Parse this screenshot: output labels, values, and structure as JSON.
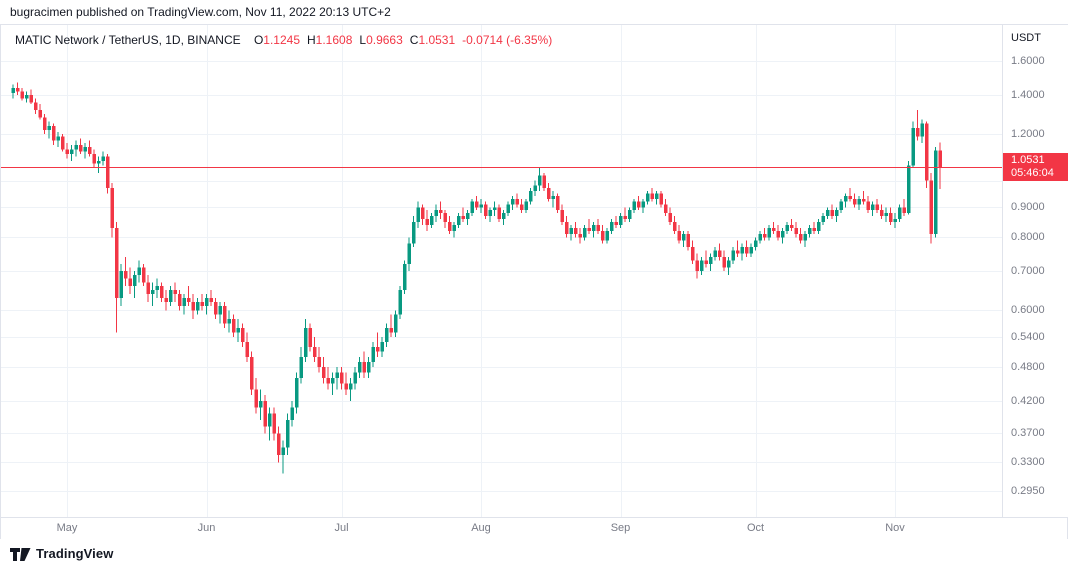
{
  "attribution": {
    "text": "bugracimen published on TradingView.com, Nov 11, 2022 20:13 UTC+2"
  },
  "legend": {
    "title": "MATIC Network / TetherUS, 1D, BINANCE",
    "items": [
      {
        "k": "O",
        "v": "1.1245"
      },
      {
        "k": "H",
        "v": "1.1608"
      },
      {
        "k": "L",
        "v": "0.9663"
      },
      {
        "k": "C",
        "v": "1.0531"
      }
    ],
    "change": "-0.0714 (-6.35%)"
  },
  "price_axis": {
    "currency": "USDT",
    "badge": {
      "price": "1.0531",
      "countdown": "05:46:04"
    }
  },
  "footer": {
    "logo_text": "TradingView"
  },
  "colors": {
    "up": "#089981",
    "down": "#f23645",
    "accent": "#f23645",
    "grid": "#eef2f7",
    "axis_text": "#787b86",
    "header_text": "#131722",
    "border": "#e0e3eb"
  },
  "chart_data": {
    "type": "candlestick",
    "symbol": "MATIC/USDT",
    "interval": "1D",
    "exchange": "BINANCE",
    "scale": "log",
    "last": {
      "open": 1.1245,
      "high": 1.1608,
      "low": 0.9663,
      "close": 1.0531,
      "change": -0.0714,
      "change_pct": -6.35
    },
    "y_ticks": [
      {
        "label": "1.6000",
        "value": 1.6
      },
      {
        "label": "1.4000",
        "value": 1.4
      },
      {
        "label": "1.2000",
        "value": 1.2
      },
      {
        "label": "0.9000",
        "value": 0.9
      },
      {
        "label": "0.8000",
        "value": 0.8
      },
      {
        "label": "0.7000",
        "value": 0.7
      },
      {
        "label": "0.6000",
        "value": 0.6
      },
      {
        "label": "0.5400",
        "value": 0.54
      },
      {
        "label": "0.4800",
        "value": 0.48
      },
      {
        "label": "0.4200",
        "value": 0.42
      },
      {
        "label": "0.3700",
        "value": 0.37
      },
      {
        "label": "0.3300",
        "value": 0.33
      },
      {
        "label": "0.2950",
        "value": 0.295
      }
    ],
    "grid_prices": [
      1.6,
      1.4,
      1.2,
      1.0,
      0.9,
      0.8,
      0.7,
      0.6,
      0.54,
      0.48,
      0.42,
      0.37,
      0.33,
      0.295
    ],
    "months": [
      {
        "label": "May",
        "index": 12
      },
      {
        "label": "Jun",
        "index": 43
      },
      {
        "label": "Jul",
        "index": 73
      },
      {
        "label": "Aug",
        "index": 104
      },
      {
        "label": "Sep",
        "index": 135
      },
      {
        "label": "Oct",
        "index": 165
      },
      {
        "label": "Nov",
        "index": 196
      }
    ],
    "candles": [
      [
        1.41,
        1.46,
        1.38,
        1.44
      ],
      [
        1.44,
        1.47,
        1.4,
        1.42
      ],
      [
        1.42,
        1.44,
        1.37,
        1.38
      ],
      [
        1.38,
        1.42,
        1.36,
        1.4
      ],
      [
        1.4,
        1.43,
        1.35,
        1.36
      ],
      [
        1.36,
        1.38,
        1.3,
        1.32
      ],
      [
        1.32,
        1.35,
        1.27,
        1.28
      ],
      [
        1.28,
        1.3,
        1.2,
        1.22
      ],
      [
        1.22,
        1.26,
        1.18,
        1.24
      ],
      [
        1.24,
        1.25,
        1.15,
        1.17
      ],
      [
        1.17,
        1.21,
        1.14,
        1.19
      ],
      [
        1.19,
        1.2,
        1.12,
        1.13
      ],
      [
        1.13,
        1.16,
        1.09,
        1.11
      ],
      [
        1.11,
        1.15,
        1.08,
        1.13
      ],
      [
        1.13,
        1.17,
        1.1,
        1.15
      ],
      [
        1.15,
        1.18,
        1.11,
        1.12
      ],
      [
        1.12,
        1.16,
        1.09,
        1.14
      ],
      [
        1.14,
        1.17,
        1.1,
        1.11
      ],
      [
        1.11,
        1.13,
        1.05,
        1.07
      ],
      [
        1.07,
        1.1,
        1.03,
        1.08
      ],
      [
        1.08,
        1.12,
        1.06,
        1.1
      ],
      [
        1.1,
        1.11,
        0.95,
        0.97
      ],
      [
        0.97,
        0.99,
        0.8,
        0.83
      ],
      [
        0.83,
        0.85,
        0.55,
        0.63
      ],
      [
        0.63,
        0.72,
        0.61,
        0.7
      ],
      [
        0.7,
        0.74,
        0.66,
        0.68
      ],
      [
        0.68,
        0.71,
        0.64,
        0.66
      ],
      [
        0.66,
        0.7,
        0.63,
        0.69
      ],
      [
        0.69,
        0.73,
        0.67,
        0.71
      ],
      [
        0.71,
        0.72,
        0.66,
        0.67
      ],
      [
        0.67,
        0.69,
        0.62,
        0.64
      ],
      [
        0.64,
        0.67,
        0.61,
        0.65
      ],
      [
        0.65,
        0.68,
        0.63,
        0.66
      ],
      [
        0.66,
        0.67,
        0.62,
        0.63
      ],
      [
        0.63,
        0.65,
        0.6,
        0.62
      ],
      [
        0.62,
        0.66,
        0.61,
        0.65
      ],
      [
        0.65,
        0.67,
        0.62,
        0.64
      ],
      [
        0.64,
        0.65,
        0.6,
        0.61
      ],
      [
        0.61,
        0.64,
        0.59,
        0.63
      ],
      [
        0.63,
        0.66,
        0.61,
        0.62
      ],
      [
        0.62,
        0.64,
        0.58,
        0.6
      ],
      [
        0.6,
        0.63,
        0.59,
        0.62
      ],
      [
        0.62,
        0.64,
        0.6,
        0.61
      ],
      [
        0.61,
        0.64,
        0.59,
        0.63
      ],
      [
        0.63,
        0.65,
        0.61,
        0.62
      ],
      [
        0.62,
        0.63,
        0.58,
        0.59
      ],
      [
        0.59,
        0.62,
        0.57,
        0.61
      ],
      [
        0.61,
        0.62,
        0.56,
        0.57
      ],
      [
        0.57,
        0.6,
        0.55,
        0.58
      ],
      [
        0.58,
        0.59,
        0.54,
        0.55
      ],
      [
        0.55,
        0.58,
        0.53,
        0.56
      ],
      [
        0.56,
        0.57,
        0.52,
        0.53
      ],
      [
        0.53,
        0.55,
        0.49,
        0.5
      ],
      [
        0.5,
        0.51,
        0.43,
        0.44
      ],
      [
        0.44,
        0.46,
        0.4,
        0.41
      ],
      [
        0.41,
        0.44,
        0.39,
        0.42
      ],
      [
        0.42,
        0.43,
        0.37,
        0.38
      ],
      [
        0.38,
        0.41,
        0.36,
        0.4
      ],
      [
        0.4,
        0.41,
        0.36,
        0.37
      ],
      [
        0.37,
        0.38,
        0.33,
        0.34
      ],
      [
        0.34,
        0.36,
        0.316,
        0.35
      ],
      [
        0.35,
        0.4,
        0.34,
        0.39
      ],
      [
        0.39,
        0.42,
        0.38,
        0.41
      ],
      [
        0.41,
        0.47,
        0.4,
        0.46
      ],
      [
        0.46,
        0.52,
        0.45,
        0.5
      ],
      [
        0.5,
        0.58,
        0.49,
        0.56
      ],
      [
        0.56,
        0.57,
        0.51,
        0.52
      ],
      [
        0.52,
        0.54,
        0.49,
        0.5
      ],
      [
        0.5,
        0.52,
        0.47,
        0.48
      ],
      [
        0.48,
        0.5,
        0.45,
        0.46
      ],
      [
        0.46,
        0.48,
        0.44,
        0.45
      ],
      [
        0.45,
        0.47,
        0.43,
        0.46
      ],
      [
        0.46,
        0.48,
        0.44,
        0.47
      ],
      [
        0.47,
        0.48,
        0.44,
        0.45
      ],
      [
        0.45,
        0.47,
        0.43,
        0.44
      ],
      [
        0.44,
        0.46,
        0.42,
        0.45
      ],
      [
        0.45,
        0.48,
        0.44,
        0.47
      ],
      [
        0.47,
        0.5,
        0.46,
        0.49
      ],
      [
        0.49,
        0.51,
        0.46,
        0.47
      ],
      [
        0.47,
        0.5,
        0.46,
        0.49
      ],
      [
        0.49,
        0.53,
        0.48,
        0.52
      ],
      [
        0.52,
        0.55,
        0.5,
        0.51
      ],
      [
        0.51,
        0.54,
        0.5,
        0.53
      ],
      [
        0.53,
        0.57,
        0.52,
        0.56
      ],
      [
        0.56,
        0.59,
        0.54,
        0.55
      ],
      [
        0.55,
        0.6,
        0.54,
        0.59
      ],
      [
        0.59,
        0.66,
        0.58,
        0.65
      ],
      [
        0.65,
        0.73,
        0.64,
        0.72
      ],
      [
        0.72,
        0.8,
        0.7,
        0.78
      ],
      [
        0.78,
        0.87,
        0.77,
        0.85
      ],
      [
        0.85,
        0.92,
        0.83,
        0.9
      ],
      [
        0.9,
        0.91,
        0.84,
        0.86
      ],
      [
        0.86,
        0.89,
        0.82,
        0.84
      ],
      [
        0.84,
        0.88,
        0.83,
        0.87
      ],
      [
        0.87,
        0.91,
        0.85,
        0.89
      ],
      [
        0.89,
        0.92,
        0.86,
        0.88
      ],
      [
        0.88,
        0.89,
        0.83,
        0.85
      ],
      [
        0.85,
        0.87,
        0.81,
        0.82
      ],
      [
        0.82,
        0.85,
        0.8,
        0.84
      ],
      [
        0.84,
        0.88,
        0.83,
        0.87
      ],
      [
        0.87,
        0.9,
        0.85,
        0.86
      ],
      [
        0.86,
        0.89,
        0.84,
        0.88
      ],
      [
        0.88,
        0.93,
        0.87,
        0.92
      ],
      [
        0.92,
        0.94,
        0.89,
        0.9
      ],
      [
        0.9,
        0.93,
        0.88,
        0.91
      ],
      [
        0.91,
        0.92,
        0.86,
        0.87
      ],
      [
        0.87,
        0.9,
        0.85,
        0.89
      ],
      [
        0.89,
        0.92,
        0.87,
        0.9
      ],
      [
        0.9,
        0.91,
        0.85,
        0.86
      ],
      [
        0.86,
        0.89,
        0.84,
        0.88
      ],
      [
        0.88,
        0.92,
        0.87,
        0.91
      ],
      [
        0.91,
        0.94,
        0.89,
        0.93
      ],
      [
        0.93,
        0.95,
        0.9,
        0.91
      ],
      [
        0.91,
        0.93,
        0.88,
        0.89
      ],
      [
        0.89,
        0.93,
        0.88,
        0.92
      ],
      [
        0.92,
        0.97,
        0.91,
        0.96
      ],
      [
        0.96,
        1.0,
        0.94,
        0.98
      ],
      [
        0.98,
        1.05,
        0.96,
        1.02
      ],
      [
        1.02,
        1.03,
        0.96,
        0.97
      ],
      [
        0.97,
        0.99,
        0.92,
        0.93
      ],
      [
        0.93,
        0.96,
        0.9,
        0.94
      ],
      [
        0.94,
        0.95,
        0.88,
        0.89
      ],
      [
        0.89,
        0.91,
        0.84,
        0.85
      ],
      [
        0.85,
        0.87,
        0.8,
        0.81
      ],
      [
        0.81,
        0.84,
        0.79,
        0.83
      ],
      [
        0.83,
        0.85,
        0.8,
        0.81
      ],
      [
        0.81,
        0.83,
        0.78,
        0.8
      ],
      [
        0.8,
        0.84,
        0.79,
        0.83
      ],
      [
        0.83,
        0.86,
        0.81,
        0.82
      ],
      [
        0.82,
        0.85,
        0.8,
        0.84
      ],
      [
        0.84,
        0.86,
        0.81,
        0.82
      ],
      [
        0.82,
        0.84,
        0.78,
        0.79
      ],
      [
        0.79,
        0.83,
        0.78,
        0.82
      ],
      [
        0.82,
        0.86,
        0.81,
        0.85
      ],
      [
        0.85,
        0.87,
        0.83,
        0.84
      ],
      [
        0.84,
        0.88,
        0.83,
        0.87
      ],
      [
        0.87,
        0.9,
        0.85,
        0.86
      ],
      [
        0.86,
        0.9,
        0.85,
        0.89
      ],
      [
        0.89,
        0.93,
        0.88,
        0.92
      ],
      [
        0.92,
        0.94,
        0.89,
        0.9
      ],
      [
        0.9,
        0.93,
        0.88,
        0.92
      ],
      [
        0.92,
        0.96,
        0.91,
        0.95
      ],
      [
        0.95,
        0.97,
        0.92,
        0.93
      ],
      [
        0.93,
        0.96,
        0.91,
        0.95
      ],
      [
        0.95,
        0.96,
        0.9,
        0.91
      ],
      [
        0.91,
        0.93,
        0.87,
        0.88
      ],
      [
        0.88,
        0.9,
        0.84,
        0.85
      ],
      [
        0.85,
        0.87,
        0.81,
        0.82
      ],
      [
        0.82,
        0.84,
        0.78,
        0.79
      ],
      [
        0.79,
        0.82,
        0.77,
        0.81
      ],
      [
        0.81,
        0.82,
        0.76,
        0.77
      ],
      [
        0.77,
        0.79,
        0.72,
        0.73
      ],
      [
        0.73,
        0.75,
        0.68,
        0.7
      ],
      [
        0.7,
        0.74,
        0.69,
        0.73
      ],
      [
        0.73,
        0.76,
        0.71,
        0.72
      ],
      [
        0.72,
        0.75,
        0.7,
        0.74
      ],
      [
        0.74,
        0.77,
        0.73,
        0.76
      ],
      [
        0.76,
        0.78,
        0.73,
        0.74
      ],
      [
        0.74,
        0.76,
        0.7,
        0.71
      ],
      [
        0.71,
        0.74,
        0.69,
        0.73
      ],
      [
        0.73,
        0.77,
        0.72,
        0.76
      ],
      [
        0.76,
        0.79,
        0.74,
        0.75
      ],
      [
        0.75,
        0.78,
        0.73,
        0.77
      ],
      [
        0.77,
        0.79,
        0.74,
        0.75
      ],
      [
        0.75,
        0.78,
        0.74,
        0.77
      ],
      [
        0.77,
        0.8,
        0.76,
        0.79
      ],
      [
        0.79,
        0.82,
        0.78,
        0.81
      ],
      [
        0.81,
        0.83,
        0.79,
        0.8
      ],
      [
        0.8,
        0.84,
        0.79,
        0.83
      ],
      [
        0.83,
        0.85,
        0.81,
        0.82
      ],
      [
        0.82,
        0.84,
        0.79,
        0.8
      ],
      [
        0.8,
        0.83,
        0.78,
        0.82
      ],
      [
        0.82,
        0.85,
        0.81,
        0.84
      ],
      [
        0.84,
        0.86,
        0.82,
        0.83
      ],
      [
        0.83,
        0.85,
        0.8,
        0.81
      ],
      [
        0.81,
        0.83,
        0.78,
        0.79
      ],
      [
        0.79,
        0.82,
        0.77,
        0.81
      ],
      [
        0.81,
        0.84,
        0.8,
        0.83
      ],
      [
        0.83,
        0.85,
        0.81,
        0.82
      ],
      [
        0.82,
        0.86,
        0.81,
        0.85
      ],
      [
        0.85,
        0.88,
        0.84,
        0.87
      ],
      [
        0.87,
        0.9,
        0.86,
        0.89
      ],
      [
        0.89,
        0.91,
        0.86,
        0.87
      ],
      [
        0.87,
        0.9,
        0.85,
        0.89
      ],
      [
        0.89,
        0.93,
        0.88,
        0.92
      ],
      [
        0.92,
        0.95,
        0.9,
        0.94
      ],
      [
        0.94,
        0.97,
        0.92,
        0.93
      ],
      [
        0.93,
        0.95,
        0.9,
        0.91
      ],
      [
        0.91,
        0.94,
        0.89,
        0.93
      ],
      [
        0.93,
        0.96,
        0.91,
        0.92
      ],
      [
        0.92,
        0.94,
        0.88,
        0.89
      ],
      [
        0.89,
        0.92,
        0.87,
        0.91
      ],
      [
        0.91,
        0.93,
        0.88,
        0.89
      ],
      [
        0.89,
        0.91,
        0.86,
        0.87
      ],
      [
        0.87,
        0.9,
        0.85,
        0.88
      ],
      [
        0.88,
        0.9,
        0.84,
        0.85
      ],
      [
        0.85,
        0.88,
        0.83,
        0.86
      ],
      [
        0.86,
        0.91,
        0.85,
        0.9
      ],
      [
        0.9,
        0.93,
        0.87,
        0.88
      ],
      [
        0.88,
        1.08,
        0.875,
        1.06
      ],
      [
        1.06,
        1.26,
        1.05,
        1.23
      ],
      [
        1.23,
        1.32,
        1.17,
        1.19
      ],
      [
        1.19,
        1.27,
        1.16,
        1.25
      ],
      [
        1.25,
        1.26,
        0.97,
        1.0
      ],
      [
        1.0,
        1.03,
        0.78,
        0.81
      ],
      [
        0.81,
        1.14,
        0.8,
        1.1245
      ],
      [
        1.1245,
        1.1608,
        0.9663,
        1.0531
      ]
    ]
  }
}
